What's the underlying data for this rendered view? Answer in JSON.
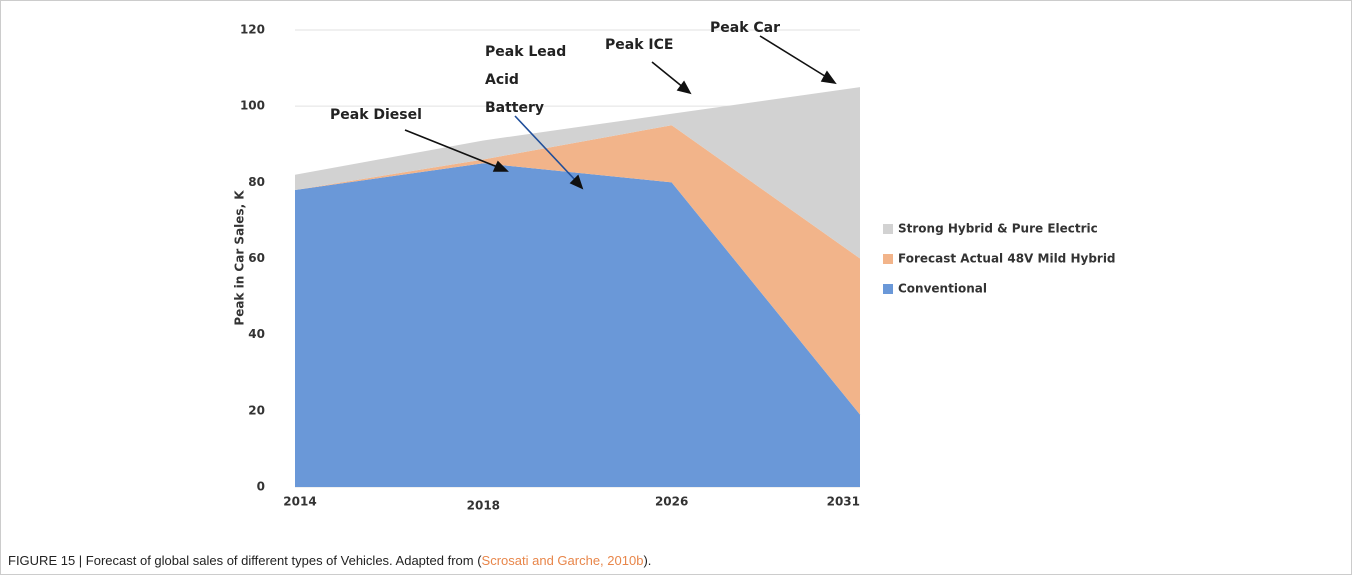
{
  "chart_data": {
    "type": "stacked_area",
    "ylabel": "Peak in Car Sales, K",
    "categories": [
      "2014",
      "2018",
      "2026",
      "2031"
    ],
    "series": [
      {
        "name": "Conventional",
        "color": "#6a98d8",
        "values": [
          78,
          85,
          80,
          19
        ]
      },
      {
        "name": "Forecast Actual 48V Mild Hybrid",
        "color": "#f2b48a",
        "values": [
          0,
          1,
          15,
          41
        ]
      },
      {
        "name": "Strong Hybrid & Pure Electric",
        "color": "#d2d2d2",
        "values": [
          4,
          5,
          3,
          45
        ]
      }
    ],
    "ylim": [
      0,
      120
    ],
    "yticks": [
      0,
      20,
      40,
      60,
      80,
      100,
      120
    ],
    "grid": true,
    "annotations": [
      {
        "lines": [
          "Peak Diesel"
        ]
      },
      {
        "lines": [
          "Peak Lead",
          "Acid",
          "Battery"
        ]
      },
      {
        "lines": [
          "Peak ICE"
        ]
      },
      {
        "lines": [
          "Peak Car"
        ]
      }
    ]
  },
  "caption": {
    "text": "FIGURE 15 | Forecast of global sales of different types of Vehicles. Adapted from (",
    "link": "Scrosati and Garche, 2010b",
    "end": ")."
  }
}
